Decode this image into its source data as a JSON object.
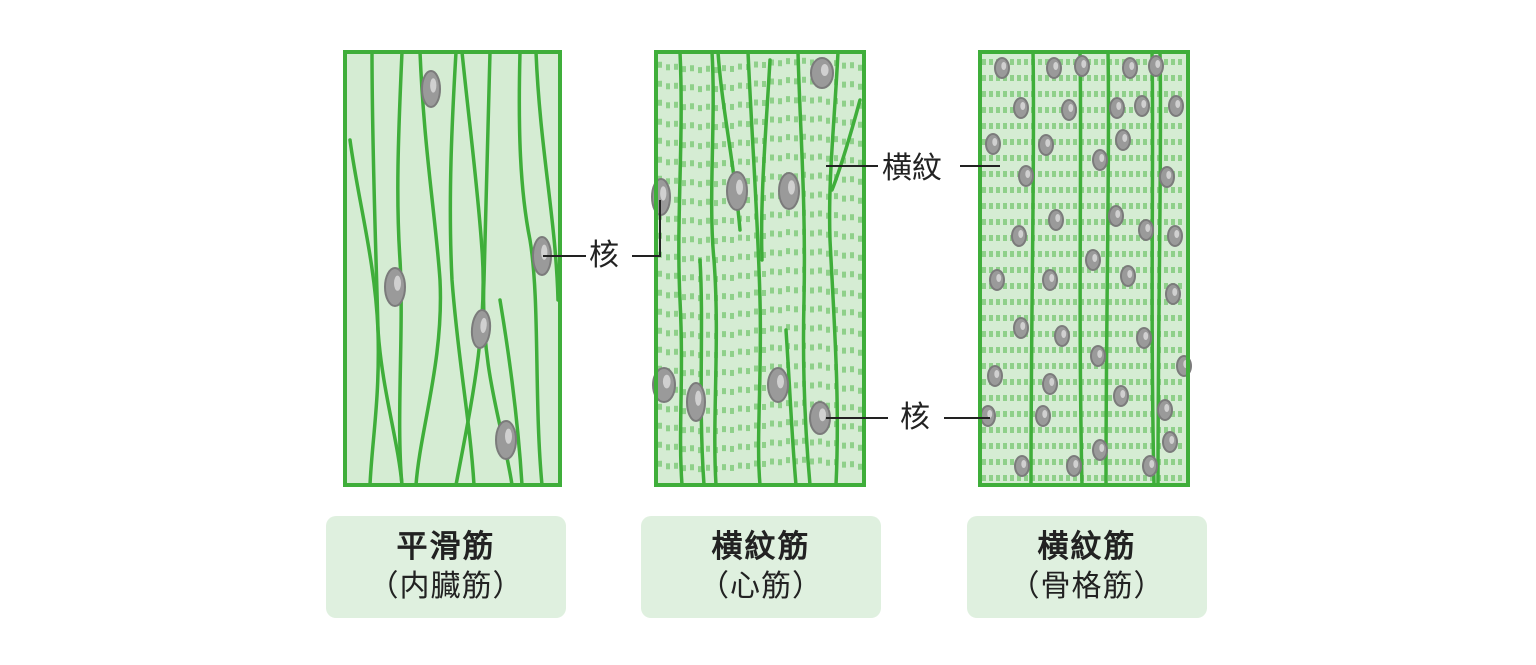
{
  "panels": [
    {
      "id": "smooth",
      "title": "平滑筋",
      "subtitle": "（内臓筋）"
    },
    {
      "id": "cardiac",
      "title": "横紋筋",
      "subtitle": "（心筋）"
    },
    {
      "id": "skeletal",
      "title": "横紋筋",
      "subtitle": "（骨格筋）"
    }
  ],
  "labels": {
    "nucleus_smooth_cardiac": "核",
    "striation": "横紋",
    "nucleus_skeletal": "核"
  },
  "colors": {
    "fiber_outline": "#3fae3a",
    "cell_fill": "#d5ecd3",
    "striation": "#8fd08a",
    "nucleus": "#9a9a9a",
    "nucleus_outline": "#7b7b7b",
    "caption_bg": "#dff0df",
    "leader_line": "#222222"
  }
}
